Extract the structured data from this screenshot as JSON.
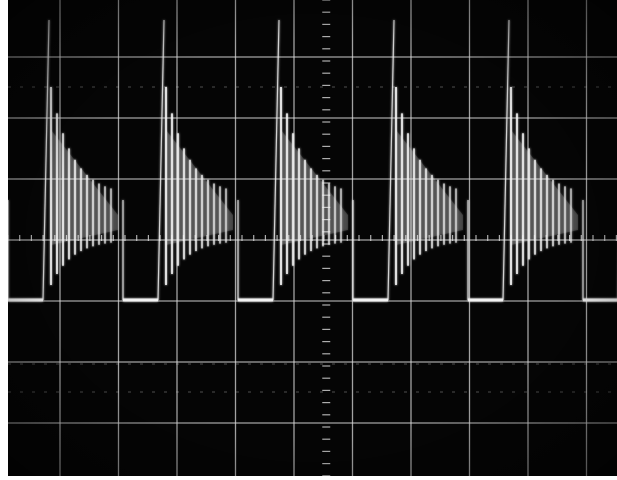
{
  "image": {
    "subject": "oscilloscope-screen-photo",
    "colors": {
      "screen_background": "#050505",
      "graticule": "#d8d8d8",
      "trace": "#f2f2f2",
      "frame": "#ffffff"
    },
    "graticule": {
      "major_divisions_x": 10,
      "major_divisions_y": 8,
      "minor_ticks_per_division": 5
    },
    "trace": {
      "cycles_visible": 5,
      "baseline_level_div": 3.0,
      "peak_level_div": 7.6,
      "decay_spikes_per_cycle": 11
    }
  }
}
